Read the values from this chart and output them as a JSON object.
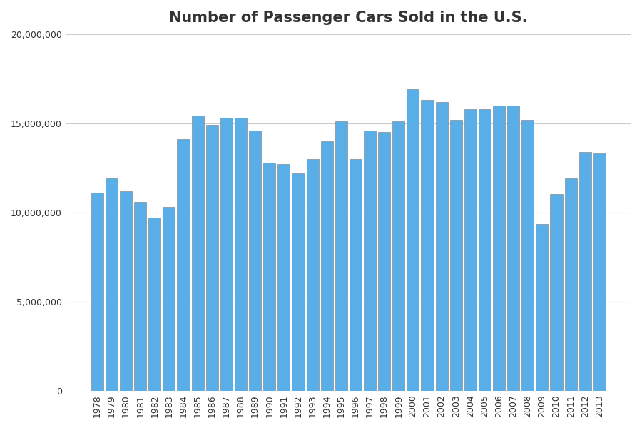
{
  "title": "Number of Passenger Cars Sold in the U.S.",
  "years": [
    1978,
    1979,
    1980,
    1981,
    1982,
    1983,
    1984,
    1985,
    1986,
    1987,
    1988,
    1989,
    1990,
    1991,
    1992,
    1993,
    1994,
    1995,
    1996,
    1997,
    1998,
    1999,
    2000,
    2001,
    2002,
    2003,
    2004,
    2005,
    2006,
    2007,
    2008,
    2009,
    2010,
    2011,
    2012,
    2013
  ],
  "values": [
    11100000,
    11900000,
    11200000,
    10600000,
    9700000,
    10300000,
    14100000,
    15450000,
    14900000,
    15300000,
    15300000,
    14600000,
    12800000,
    12700000,
    12200000,
    13000000,
    14000000,
    15100000,
    13000000,
    14600000,
    14500000,
    15100000,
    16900000,
    16300000,
    16200000,
    15200000,
    15800000,
    15800000,
    16000000,
    16000000,
    15200000,
    9350000,
    11050000,
    11900000,
    13400000,
    13300000
  ],
  "bar_color": "#5aaee8",
  "bar_edge_color": "#7a7a7a",
  "background_color": "#ffffff",
  "grid_color": "#cccccc",
  "ylim": [
    0,
    20000000
  ],
  "ytick_values": [
    0,
    5000000,
    10000000,
    15000000,
    20000000
  ],
  "title_fontsize": 15,
  "tick_fontsize": 9
}
